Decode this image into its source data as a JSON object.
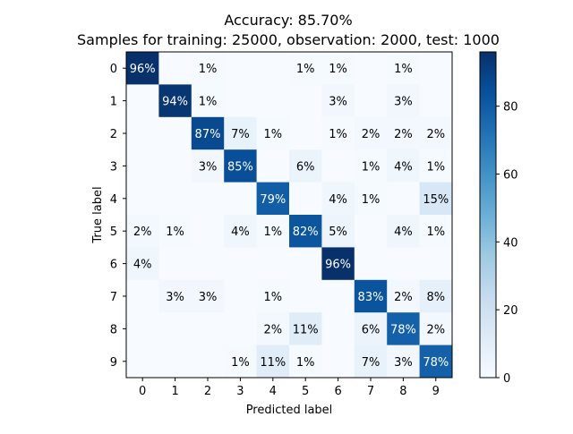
{
  "chart_data": {
    "type": "heatmap",
    "title": "Accuracy: 85.70%",
    "subtitle": "Samples for training: 25000, observation: 2000, test: 1000",
    "xlabel": "Predicted label",
    "ylabel": "True label",
    "x_categories": [
      "0",
      "1",
      "2",
      "3",
      "4",
      "5",
      "6",
      "7",
      "8",
      "9"
    ],
    "y_categories": [
      "0",
      "1",
      "2",
      "3",
      "4",
      "5",
      "6",
      "7",
      "8",
      "9"
    ],
    "values": [
      [
        96,
        0,
        1,
        0,
        0,
        1,
        1,
        0,
        1,
        0
      ],
      [
        0,
        94,
        1,
        0,
        0,
        0,
        3,
        0,
        3,
        0
      ],
      [
        0,
        0,
        87,
        7,
        1,
        0,
        1,
        2,
        2,
        2
      ],
      [
        0,
        0,
        3,
        85,
        0,
        6,
        0,
        1,
        4,
        1
      ],
      [
        0,
        0,
        0,
        0,
        79,
        0,
        4,
        1,
        0,
        15
      ],
      [
        2,
        1,
        0,
        4,
        1,
        82,
        5,
        0,
        4,
        1
      ],
      [
        4,
        0,
        0,
        0,
        0,
        0,
        96,
        0,
        0,
        0
      ],
      [
        0,
        3,
        3,
        0,
        1,
        0,
        0,
        83,
        2,
        8
      ],
      [
        0,
        0,
        0,
        0,
        2,
        11,
        0,
        6,
        78,
        2
      ],
      [
        0,
        0,
        0,
        1,
        11,
        1,
        0,
        7,
        3,
        78
      ]
    ],
    "value_suffix": "%",
    "colormap": "Blues",
    "color_range": [
      0,
      96
    ],
    "colorbar_ticks": [
      0,
      20,
      40,
      60,
      80
    ],
    "grid": false
  }
}
